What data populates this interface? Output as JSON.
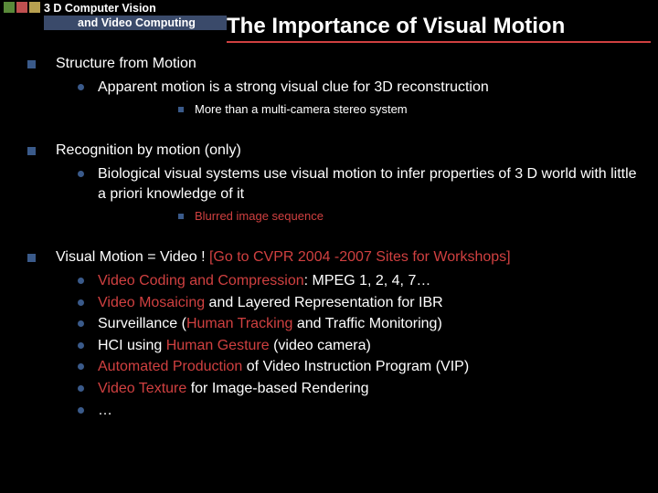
{
  "header": {
    "line1": "3 D Computer Vision",
    "line2": "and Video Computing",
    "title": "The Importance of Visual Motion"
  },
  "sections": [
    {
      "title": "Structure from Motion",
      "subs": [
        {
          "text": "Apparent motion is a strong visual clue for 3D reconstruction",
          "subs": [
            {
              "text": "More than a multi-camera stereo system"
            }
          ]
        }
      ]
    },
    {
      "title": "Recognition by motion (only)",
      "subs": [
        {
          "text": "Biological visual systems use visual motion to infer properties of 3 D world with little a priori knowledge of it",
          "subs": [
            {
              "text": "Blurred image sequence",
              "red": true
            }
          ]
        }
      ]
    }
  ],
  "vm": {
    "prefix": "Visual Motion = Video !   ",
    "link": "[Go to CVPR 2004 -2007 Sites for Workshops]",
    "items": [
      {
        "pre": "",
        "red": "Video Coding and Compression",
        "post": ": MPEG 1, 2, 4, 7…"
      },
      {
        "pre": "",
        "red": "Video Mosaicing",
        "post": " and Layered Representation for IBR"
      },
      {
        "pre": "Surveillance (",
        "red": "Human Tracking",
        "post": " and Traffic Monitoring)"
      },
      {
        "pre": "HCI using ",
        "red": "Human Gesture",
        "post": " (video camera)"
      },
      {
        "pre": "",
        "red": "Automated Production",
        "post": " of Video Instruction Program (VIP)"
      },
      {
        "pre": "",
        "red": "Video Texture",
        "post": " for Image-based Rendering"
      },
      {
        "pre": "…",
        "red": "",
        "post": ""
      }
    ]
  },
  "colors": {
    "bg": "#000000",
    "bullet": "#3a5a8a",
    "red": "#d04040",
    "band": "#3a4a6a"
  }
}
